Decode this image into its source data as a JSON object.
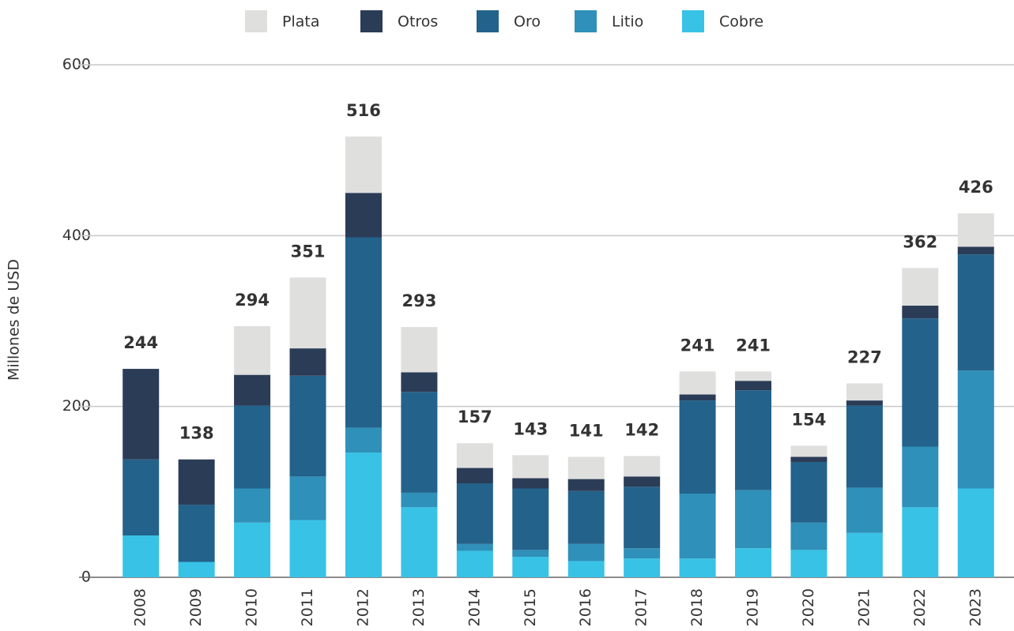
{
  "chart_data": {
    "type": "stacked_bar",
    "y_label": "Millones de USD",
    "categories": [
      "2008",
      "2009",
      "2010",
      "2011",
      "2012",
      "2013",
      "2014",
      "2015",
      "2016",
      "2017",
      "2018",
      "2019",
      "2020",
      "2021",
      "2022",
      "2023"
    ],
    "series": [
      {
        "name": "Cobre",
        "color": "#38c2e6",
        "values": [
          49,
          18,
          64,
          67,
          146,
          82,
          31,
          24,
          19,
          22,
          22,
          34,
          32,
          52,
          82,
          104
        ]
      },
      {
        "name": "Litio",
        "color": "#2f90b9",
        "values": [
          0,
          0,
          40,
          51,
          29,
          17,
          8,
          8,
          20,
          12,
          76,
          68,
          32,
          53,
          71,
          138
        ]
      },
      {
        "name": "Oro",
        "color": "#23628a",
        "values": [
          89,
          67,
          97,
          118,
          223,
          118,
          71,
          72,
          62,
          72,
          109,
          117,
          71,
          96,
          150,
          136
        ]
      },
      {
        "name": "Otros",
        "color": "#2b3c57",
        "values": [
          106,
          53,
          36,
          32,
          52,
          23,
          18,
          12,
          14,
          12,
          7,
          11,
          6,
          6,
          15,
          9
        ]
      },
      {
        "name": "Plata",
        "color": "#dfe0de",
        "values": [
          0,
          0,
          57,
          83,
          66,
          53,
          29,
          27,
          26,
          24,
          27,
          11,
          13,
          20,
          44,
          39
        ]
      }
    ],
    "totals": [
      244,
      138,
      294,
      351,
      516,
      293,
      157,
      143,
      141,
      142,
      241,
      241,
      154,
      227,
      362,
      426
    ],
    "ylim": [
      0,
      600
    ],
    "yticks": [
      0,
      200,
      400,
      600
    ],
    "grid": true,
    "legend": "top"
  }
}
